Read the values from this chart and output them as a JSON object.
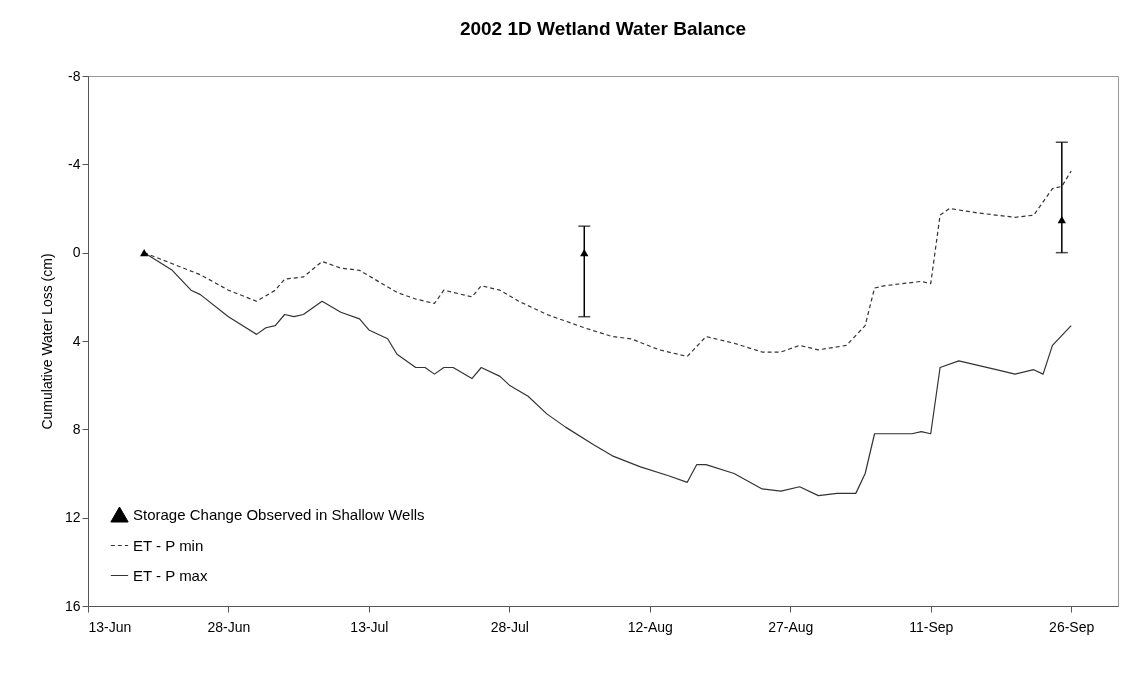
{
  "chart_data": {
    "type": "line",
    "title": "2002 1D Wetland Water Balance",
    "ylabel": "Cumulative Water Loss (cm)",
    "xlim": [
      "--06-13",
      "--10-01"
    ],
    "xticks": [
      {
        "value": "--06-13",
        "label": "13-Jun"
      },
      {
        "value": "--06-28",
        "label": "28-Jun"
      },
      {
        "value": "--07-13",
        "label": "13-Jul"
      },
      {
        "value": "--07-28",
        "label": "28-Jul"
      },
      {
        "value": "--08-12",
        "label": "12-Aug"
      },
      {
        "value": "--08-27",
        "label": "27-Aug"
      },
      {
        "value": "--09-11",
        "label": "11-Sep"
      },
      {
        "value": "--09-26",
        "label": "26-Sep"
      }
    ],
    "ylim": [
      16,
      -8
    ],
    "yticks": [
      -8,
      -4,
      0,
      4,
      8,
      12,
      16
    ],
    "legend": "bottom left",
    "grid": false,
    "series": [
      {
        "name": "Storage Change Observed in Shallow Wells",
        "type": "scatter",
        "marker": "triangle",
        "color": "#000000",
        "x": [
          "--06-19",
          "--08-05",
          "--09-25"
        ],
        "values": [
          0,
          0,
          -1.5
        ],
        "errors": [
          null,
          [
            -1.2,
            2.9
          ],
          [
            -5,
            0
          ]
        ]
      },
      {
        "name": "ET - P min",
        "type": "line",
        "line_style": "dashed",
        "color": "#333333",
        "x": [
          "--06-19",
          "--06-22",
          "--06-25",
          "--06-28",
          "--07-01",
          "--07-03",
          "--07-04",
          "--07-06",
          "--07-08",
          "--07-10",
          "--07-12",
          "--07-14",
          "--07-16",
          "--07-18",
          "--07-20",
          "--07-21",
          "--07-24",
          "--07-25",
          "--07-27",
          "--07-29",
          "--08-01",
          "--08-05",
          "--08-08",
          "--08-10",
          "--08-13",
          "--08-16",
          "--08-18",
          "--08-21",
          "--08-24",
          "--08-26",
          "--08-28",
          "--08-30",
          "--09-02",
          "--09-04",
          "--09-05",
          "--09-06",
          "--09-10",
          "--09-11",
          "--09-12",
          "--09-13",
          "--09-16",
          "--09-20",
          "--09-22",
          "--09-24",
          "--09-25",
          "--09-26"
        ],
        "values": [
          0,
          0.5,
          1.0,
          1.7,
          2.2,
          1.7,
          1.2,
          1.1,
          0.4,
          0.7,
          0.8,
          1.3,
          1.8,
          2.1,
          2.3,
          1.7,
          2.0,
          1.5,
          1.7,
          2.2,
          2.8,
          3.4,
          3.8,
          3.9,
          4.4,
          4.7,
          3.8,
          4.1,
          4.5,
          4.5,
          4.2,
          4.4,
          4.2,
          3.3,
          1.6,
          1.5,
          1.3,
          1.4,
          -1.7,
          -2.0,
          -1.8,
          -1.6,
          -1.7,
          -2.9,
          -3.0,
          -3.7
        ]
      },
      {
        "name": "ET - P max",
        "type": "line",
        "line_style": "solid",
        "color": "#333333",
        "x": [
          "--06-19",
          "--06-22",
          "--06-24",
          "--06-25",
          "--06-28",
          "--07-01",
          "--07-02",
          "--07-03",
          "--07-04",
          "--07-05",
          "--07-06",
          "--07-08",
          "--07-10",
          "--07-12",
          "--07-13",
          "--07-15",
          "--07-16",
          "--07-18",
          "--07-19",
          "--07-20",
          "--07-21",
          "--07-22",
          "--07-24",
          "--07-25",
          "--07-27",
          "--07-28",
          "--07-30",
          "--08-01",
          "--08-03",
          "--08-06",
          "--08-08",
          "--08-11",
          "--08-14",
          "--08-16",
          "--08-17",
          "--08-18",
          "--08-21",
          "--08-24",
          "--08-26",
          "--08-28",
          "--08-30",
          "--09-01",
          "--09-03",
          "--09-04",
          "--09-05",
          "--09-06",
          "--09-09",
          "--09-10",
          "--09-11",
          "--09-12",
          "--09-14",
          "--09-18",
          "--09-20",
          "--09-22",
          "--09-23",
          "--09-24",
          "--09-26"
        ],
        "values": [
          0,
          0.8,
          1.7,
          1.9,
          2.9,
          3.7,
          3.4,
          3.3,
          2.8,
          2.9,
          2.8,
          2.2,
          2.7,
          3.0,
          3.5,
          3.9,
          4.6,
          5.2,
          5.2,
          5.5,
          5.2,
          5.2,
          5.7,
          5.2,
          5.6,
          6.0,
          6.5,
          7.3,
          7.9,
          8.7,
          9.2,
          9.7,
          10.1,
          10.4,
          9.6,
          9.6,
          10.0,
          10.7,
          10.8,
          10.6,
          11.0,
          10.9,
          10.9,
          10.0,
          8.2,
          8.2,
          8.2,
          8.1,
          8.2,
          5.2,
          4.9,
          5.3,
          5.5,
          5.3,
          5.5,
          4.2,
          3.3
        ]
      }
    ]
  }
}
